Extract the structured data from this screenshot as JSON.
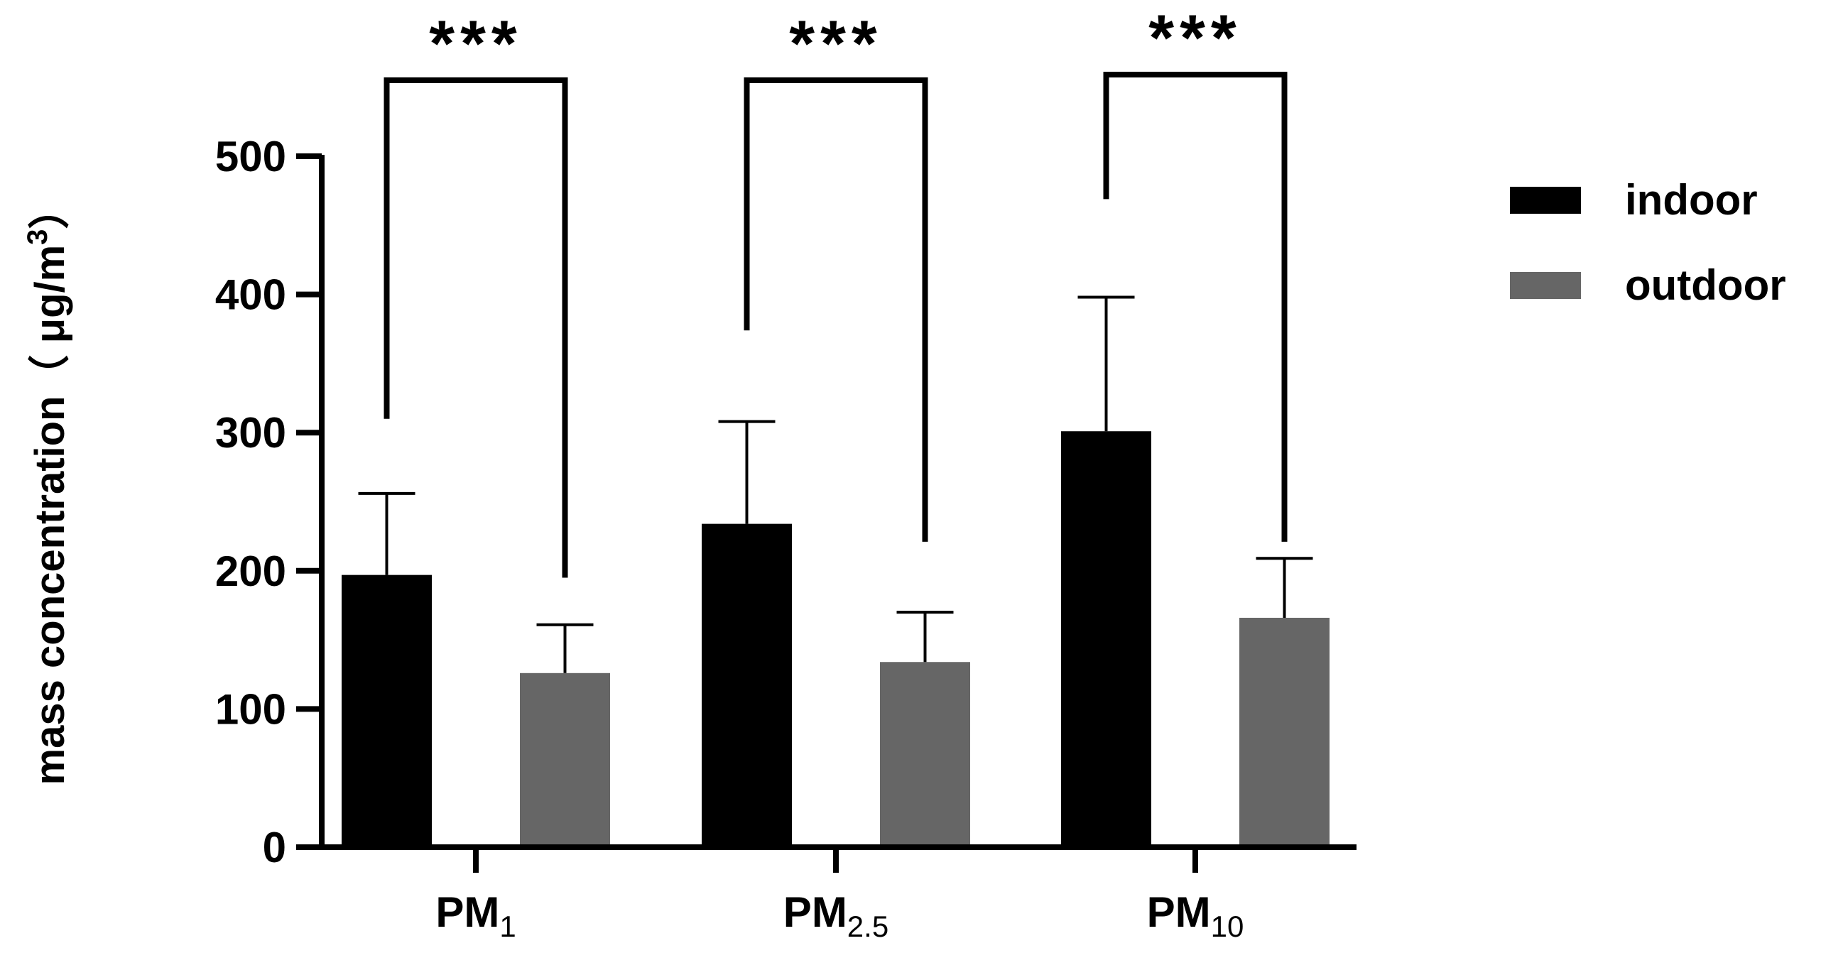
{
  "chart_data": {
    "type": "bar",
    "title": "",
    "xlabel": "",
    "ylabel": {
      "main": "mass concentration（ μg/m",
      "superscript": "3",
      "close": "）"
    },
    "ylim": [
      0,
      500
    ],
    "yticks": [
      "0",
      "100",
      "200",
      "300",
      "400",
      "500"
    ],
    "categories": [
      {
        "main": "PM",
        "sub": "1"
      },
      {
        "main": "PM",
        "sub": "2.5"
      },
      {
        "main": "PM",
        "sub": "10"
      }
    ],
    "series": [
      {
        "name": "indoor",
        "color": "#000000",
        "values": [
          197,
          234,
          301
        ],
        "error": [
          59,
          74,
          97
        ]
      },
      {
        "name": "outdoor",
        "color": "#666666",
        "values": [
          126,
          134,
          166
        ],
        "error": [
          35,
          36,
          43
        ]
      }
    ],
    "significance": [
      {
        "label": "***",
        "left_bottom": 310,
        "right_bottom": 195,
        "top": 555
      },
      {
        "label": "***",
        "left_bottom": 374,
        "right_bottom": 221,
        "top": 555
      },
      {
        "label": "***",
        "left_bottom": 469,
        "right_bottom": 221,
        "top": 559
      }
    ],
    "legend_position": "top-right",
    "grid": false
  }
}
